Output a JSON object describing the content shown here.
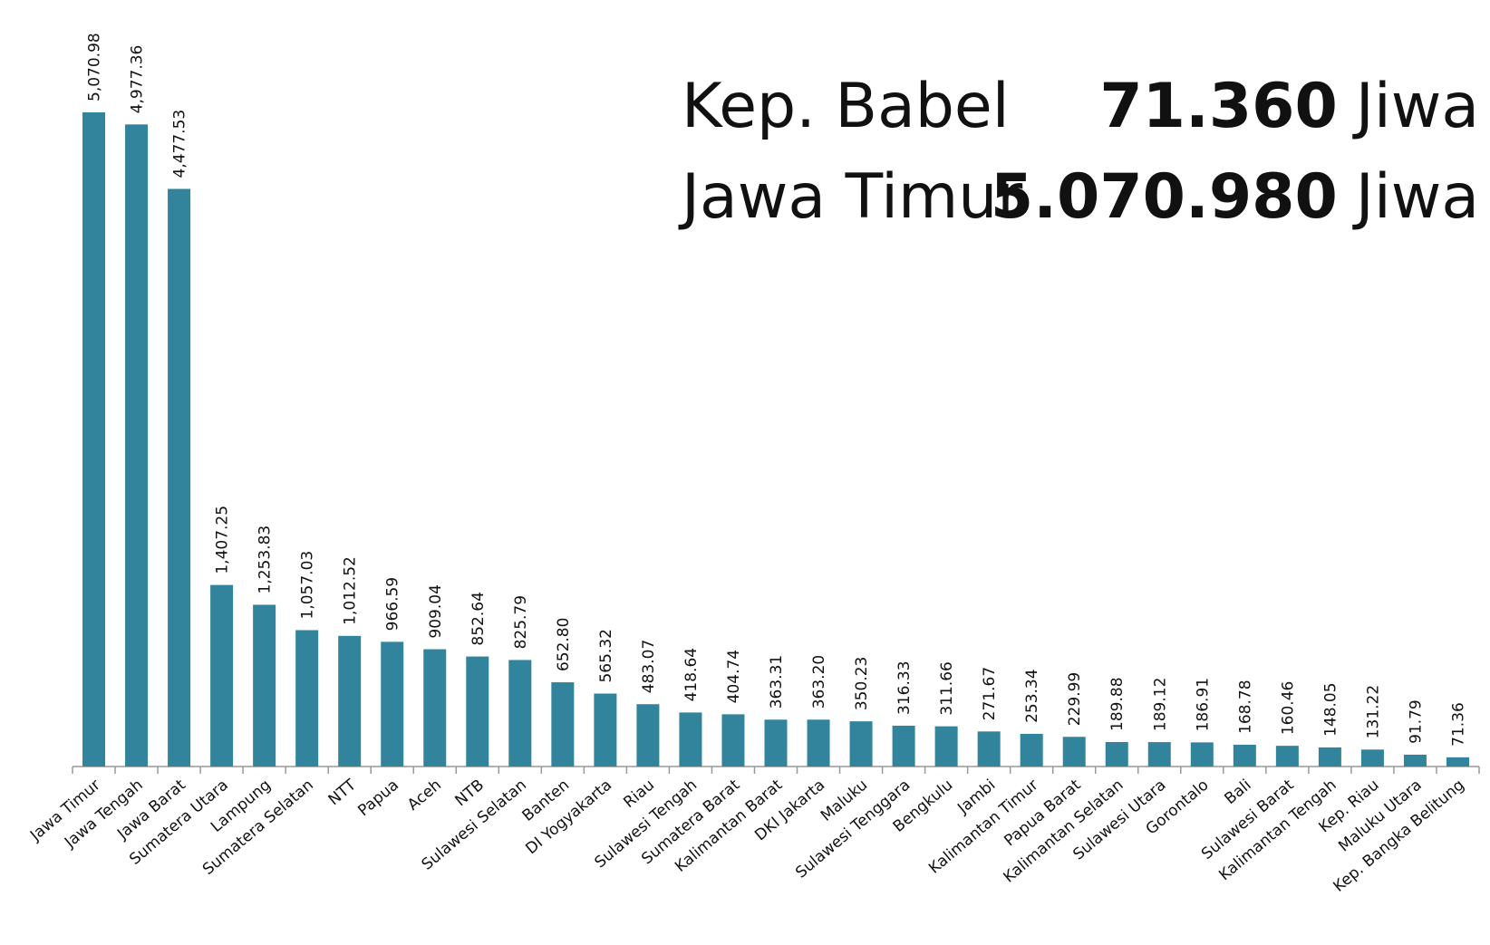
{
  "chart_data": {
    "type": "bar",
    "categories": [
      "Jawa Timur",
      "Jawa Tengah",
      "Jawa Barat",
      "Sumatera Utara",
      "Lampung",
      "Sumatera Selatan",
      "NTT",
      "Papua",
      "Aceh",
      "NTB",
      "Sulawesi Selatan",
      "Banten",
      "DI Yogyakarta",
      "Riau",
      "Sulawesi Tengah",
      "Sumatera Barat",
      "Kalimantan Barat",
      "DKI Jakarta",
      "Maluku",
      "Sulawesi Tenggara",
      "Bengkulu",
      "Jambi",
      "Kalimantan Timur",
      "Papua Barat",
      "Kalimantan Selatan",
      "Sulawesi Utara",
      "Gorontalo",
      "Bali",
      "Sulawesi Barat",
      "Kalimantan Tengah",
      "Kep. Riau",
      "Maluku Utara",
      "Kep. Bangka Belitung"
    ],
    "values": [
      5070.98,
      4977.36,
      4477.53,
      1407.25,
      1253.83,
      1057.03,
      1012.52,
      966.59,
      909.04,
      852.64,
      825.79,
      652.8,
      565.32,
      483.07,
      418.64,
      404.74,
      363.31,
      363.2,
      350.23,
      316.33,
      311.66,
      271.67,
      253.34,
      229.99,
      189.88,
      189.12,
      186.91,
      168.78,
      160.46,
      148.05,
      131.22,
      91.79,
      71.36
    ],
    "value_labels": [
      "5,070.98",
      "4,977.36",
      "4,477.53",
      "1,407.25",
      "1,253.83",
      "1,057.03",
      "1,012.52",
      "966.59",
      "909.04",
      "852.64",
      "825.79",
      "652.80",
      "565.32",
      "483.07",
      "418.64",
      "404.74",
      "363.31",
      "363.20",
      "350.23",
      "316.33",
      "311.66",
      "271.67",
      "253.34",
      "229.99",
      "189.88",
      "189.12",
      "186.91",
      "168.78",
      "160.46",
      "148.05",
      "131.22",
      "91.79",
      "71.36"
    ],
    "color": "#31849b",
    "annotations": [
      {
        "label": "Kep. Babel",
        "value": "71.360",
        "unit": "Jiwa"
      },
      {
        "label": "Jawa Timur",
        "value": "5.070.980",
        "unit": "Jiwa"
      }
    ]
  }
}
